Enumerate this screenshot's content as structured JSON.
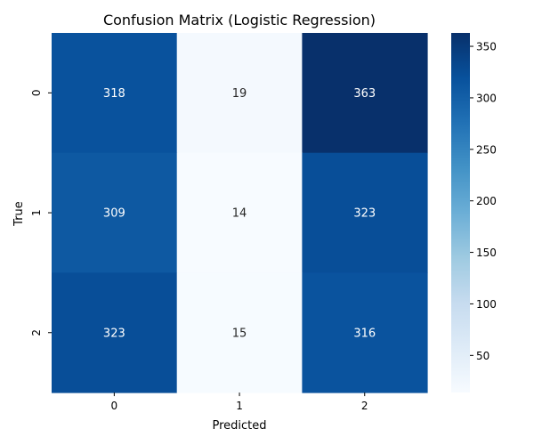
{
  "chart_data": {
    "type": "heatmap",
    "title": "Confusion Matrix (Logistic Regression)",
    "xlabel": "Predicted",
    "ylabel": "True",
    "x_categories": [
      "0",
      "1",
      "2"
    ],
    "y_categories": [
      "0",
      "1",
      "2"
    ],
    "values": [
      [
        318,
        19,
        363
      ],
      [
        309,
        14,
        323
      ],
      [
        323,
        15,
        316
      ]
    ],
    "color_scale": {
      "name": "Blues",
      "min": 14,
      "max": 363,
      "low_color": "#f7fbff",
      "high_color": "#08306b",
      "ticks": [
        "50",
        "100",
        "150",
        "200",
        "250",
        "300",
        "350"
      ]
    }
  }
}
